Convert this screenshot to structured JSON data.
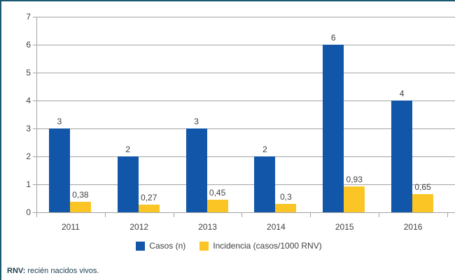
{
  "chart_data": {
    "type": "bar",
    "categories": [
      "2011",
      "2012",
      "2013",
      "2014",
      "2015",
      "2016"
    ],
    "series": [
      {
        "name": "Casos (n)",
        "color": "#1156a8",
        "values": [
          3,
          2,
          3,
          2,
          6,
          4
        ],
        "labels": [
          "3",
          "2",
          "3",
          "2",
          "6",
          "4"
        ]
      },
      {
        "name": "Incidencia (casos/1000 RNV)",
        "color": "#fbc525",
        "values": [
          0.38,
          0.27,
          0.45,
          0.3,
          0.93,
          0.65
        ],
        "labels": [
          "0,38",
          "0,27",
          "0,45",
          "0,3",
          "0,93",
          "0,65"
        ]
      }
    ],
    "ylim": [
      0,
      7
    ],
    "yticks": [
      0,
      1,
      2,
      3,
      4,
      5,
      6,
      7
    ],
    "grid": true,
    "legend_position": "bottom",
    "gridline_color": "#a3a3a3",
    "text_color": "#404040",
    "border_color": "#1b5871"
  },
  "footnote": {
    "bold": "RNV:",
    "text": " recién nacidos vivos."
  }
}
